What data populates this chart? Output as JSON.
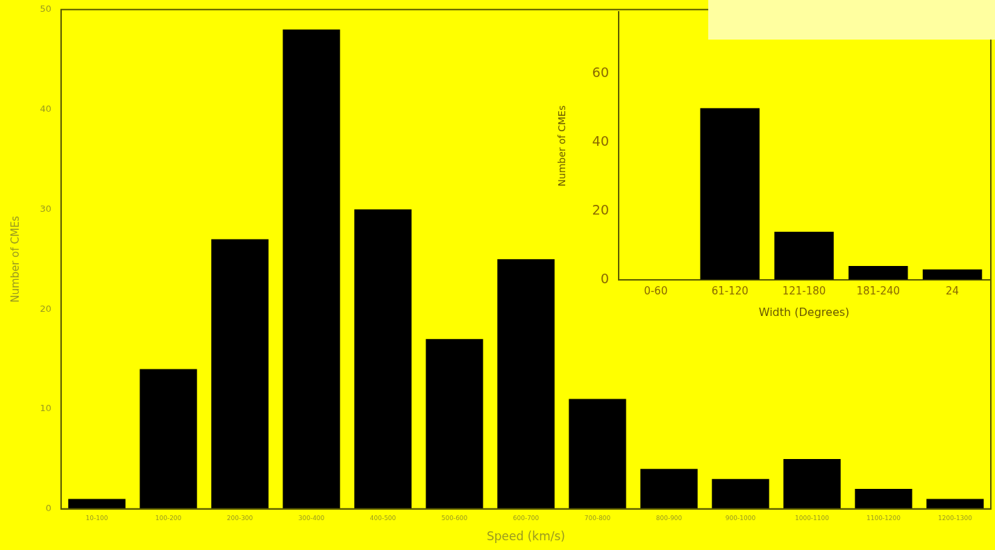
{
  "chart_data": [
    {
      "type": "bar",
      "xlabel": "Speed (km/s)",
      "ylabel": "Number of CMEs",
      "categories": [
        "10-100",
        "100-200",
        "200-300",
        "300-400",
        "400-500",
        "500-600",
        "600-700",
        "700-800",
        "800-900",
        "900-1000",
        "1000-1100",
        "1100-1200",
        "1200-1300"
      ],
      "values": [
        1,
        14,
        27,
        48,
        30,
        17,
        25,
        11,
        4,
        3,
        5,
        2,
        1
      ],
      "color": "#000000",
      "ylim": [
        0,
        50
      ],
      "yticks": [
        0,
        10,
        20,
        30,
        40,
        50
      ],
      "grid": false
    },
    {
      "type": "bar",
      "xlabel": "Width (Degrees)",
      "ylabel": "Number of CMEs",
      "categories": [
        "0-60",
        "61-120",
        "121-180",
        "181-240",
        "24"
      ],
      "values": [
        null,
        50,
        14,
        4,
        3
      ],
      "color": "#000000",
      "ylim": [
        0,
        78
      ],
      "yticks": [
        0,
        20,
        40,
        60
      ],
      "grid": false
    }
  ]
}
